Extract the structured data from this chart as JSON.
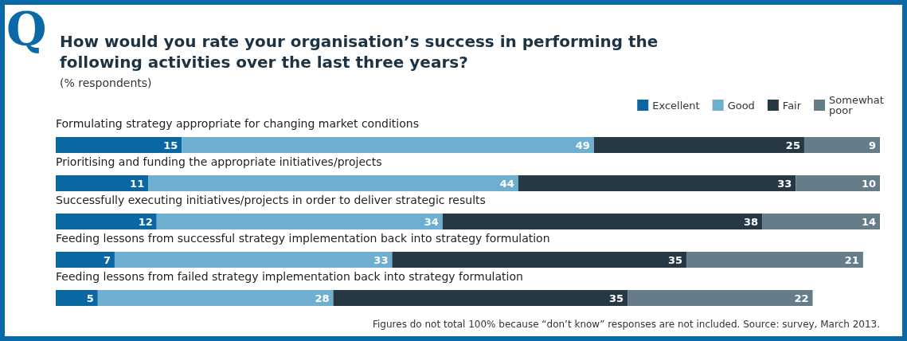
{
  "chart_data": {
    "type": "bar",
    "orientation": "horizontal",
    "stacked": true,
    "data_labels": true,
    "legend": "top right",
    "title": "How would you rate your organisation’s success in performing the following activities over the last three years?",
    "subtitle": "(% respondents)",
    "categories": [
      "Formulating strategy appropriate for changing market conditions",
      "Prioritising and funding the appropriate initiatives/projects",
      "Successfully executing initiatives/projects in order to deliver strategic results",
      "Feeding lessons from successful strategy implementation back into strategy formulation",
      "Feeding lessons from failed strategy implementation back into strategy formulation"
    ],
    "series": [
      {
        "name": "Excellent",
        "color": "#0b67a2",
        "values": [
          15,
          11,
          12,
          7,
          5
        ]
      },
      {
        "name": "Good",
        "color": "#6eaecf",
        "values": [
          49,
          44,
          34,
          33,
          28
        ]
      },
      {
        "name": "Fair",
        "color": "#263844",
        "values": [
          25,
          33,
          38,
          35,
          35
        ]
      },
      {
        "name": "Somewhat poor",
        "color": "#677c89",
        "values": [
          9,
          10,
          14,
          21,
          22
        ]
      }
    ],
    "annotations": [
      "Q",
      "Figures do not total 100% because “don’t know” responses are not included. Source: survey, March 2013."
    ]
  }
}
